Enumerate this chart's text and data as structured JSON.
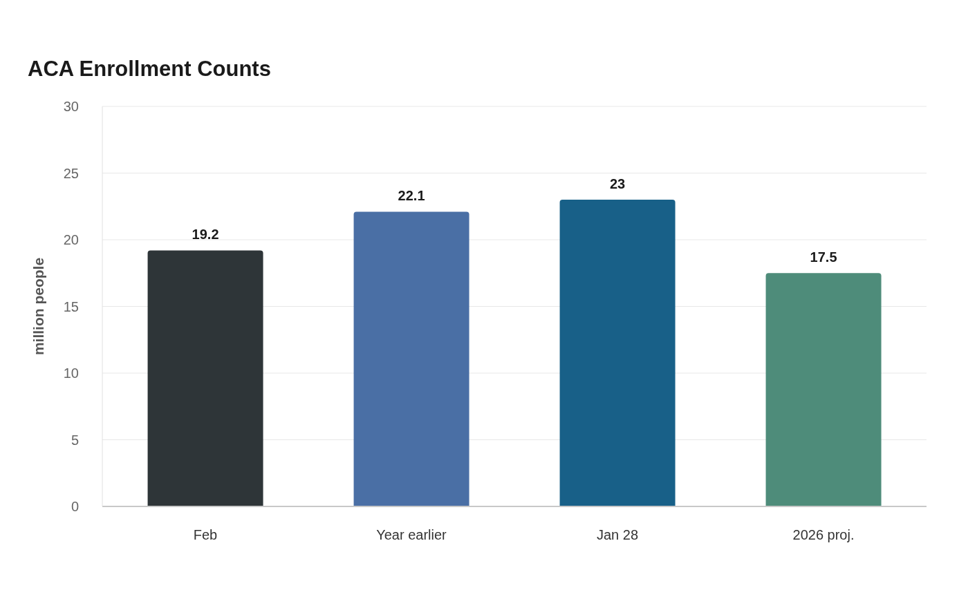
{
  "chart_data": {
    "type": "bar",
    "title": "ACA Enrollment Counts",
    "ylabel": "million people",
    "categories": [
      "Feb",
      "Year earlier",
      "Jan 28",
      "2026 proj."
    ],
    "values": [
      19.2,
      22.1,
      23,
      17.5
    ],
    "colors": [
      "#2e3538",
      "#4a6fa5",
      "#186088",
      "#4e8c7a"
    ],
    "ylim": [
      0,
      30
    ],
    "yticks": [
      0,
      5,
      10,
      15,
      20,
      25,
      30
    ],
    "grid": "y",
    "data_labels": true,
    "legend": false
  }
}
